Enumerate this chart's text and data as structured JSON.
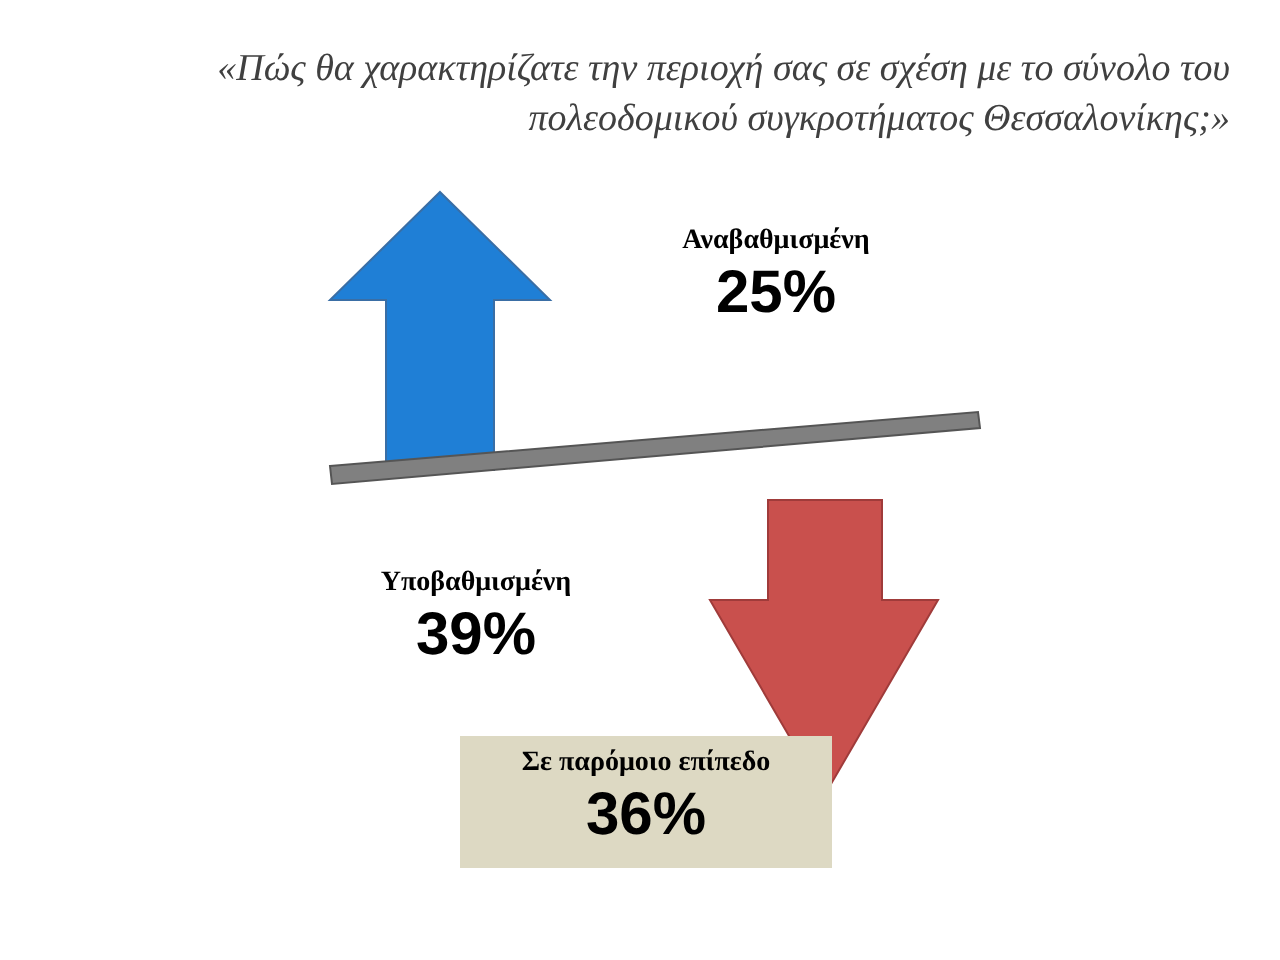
{
  "chart_data": {
    "type": "other",
    "title": "«Πώς θα χαρακτηρίζατε την περιοχή σας σε σχέση με το σύνολο του πολεοδομικού συγκροτήματος Θεσσαλονίκης;»",
    "categories": [
      "Αναβαθμισμένη",
      "Υποβαθμισμένη",
      "Σε παρόμοιο επίπεδο"
    ],
    "values": [
      25,
      39,
      36
    ],
    "value_labels": [
      "25%",
      "39%",
      "36%"
    ]
  }
}
